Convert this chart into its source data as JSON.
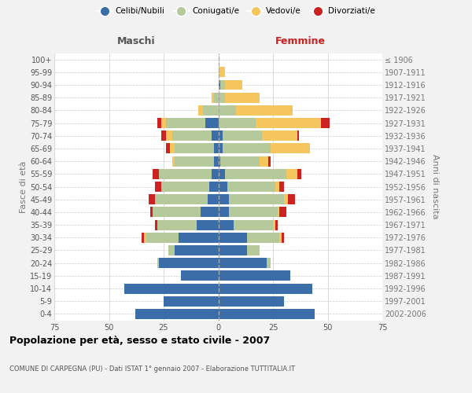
{
  "age_groups": [
    "0-4",
    "5-9",
    "10-14",
    "15-19",
    "20-24",
    "25-29",
    "30-34",
    "35-39",
    "40-44",
    "45-49",
    "50-54",
    "55-59",
    "60-64",
    "65-69",
    "70-74",
    "75-79",
    "80-84",
    "85-89",
    "90-94",
    "95-99",
    "100+"
  ],
  "birth_years": [
    "2002-2006",
    "1997-2001",
    "1992-1996",
    "1987-1991",
    "1982-1986",
    "1977-1981",
    "1972-1976",
    "1967-1971",
    "1962-1966",
    "1957-1961",
    "1952-1956",
    "1947-1951",
    "1942-1946",
    "1937-1941",
    "1932-1936",
    "1927-1931",
    "1922-1926",
    "1917-1921",
    "1912-1916",
    "1907-1911",
    "≤ 1906"
  ],
  "maschi": {
    "celibi": [
      38,
      25,
      43,
      17,
      27,
      20,
      18,
      10,
      8,
      5,
      4,
      3,
      2,
      2,
      3,
      6,
      0,
      0,
      0,
      0,
      0
    ],
    "coniugati": [
      0,
      0,
      0,
      0,
      1,
      3,
      15,
      18,
      22,
      24,
      22,
      24,
      18,
      18,
      18,
      18,
      7,
      2,
      0,
      0,
      0
    ],
    "vedovi": [
      0,
      0,
      0,
      0,
      0,
      0,
      1,
      0,
      0,
      0,
      0,
      0,
      1,
      2,
      3,
      2,
      2,
      1,
      0,
      0,
      0
    ],
    "divorziati": [
      0,
      0,
      0,
      0,
      0,
      0,
      1,
      1,
      1,
      3,
      3,
      3,
      0,
      2,
      2,
      2,
      0,
      0,
      0,
      0,
      0
    ]
  },
  "femmine": {
    "nubili": [
      44,
      30,
      43,
      33,
      22,
      13,
      13,
      7,
      5,
      5,
      4,
      3,
      1,
      2,
      2,
      0,
      0,
      0,
      1,
      0,
      0
    ],
    "coniugate": [
      0,
      0,
      0,
      0,
      2,
      6,
      15,
      18,
      22,
      25,
      22,
      28,
      18,
      22,
      18,
      17,
      8,
      3,
      2,
      0,
      0
    ],
    "vedove": [
      0,
      0,
      0,
      0,
      0,
      0,
      1,
      1,
      1,
      2,
      2,
      5,
      4,
      18,
      16,
      30,
      26,
      16,
      8,
      3,
      0
    ],
    "divorziate": [
      0,
      0,
      0,
      0,
      0,
      0,
      1,
      1,
      3,
      3,
      2,
      2,
      1,
      0,
      1,
      4,
      0,
      0,
      0,
      0,
      0
    ]
  },
  "colors": {
    "celibi": "#3B6DA8",
    "coniugati": "#B5C99A",
    "vedovi": "#F5C55E",
    "divorziati": "#CC2222"
  },
  "title": "Popolazione per età, sesso e stato civile - 2007",
  "subtitle": "COMUNE DI CARPEGNA (PU) - Dati ISTAT 1° gennaio 2007 - Elaborazione TUTTITALIA.IT",
  "xlabel_left": "Maschi",
  "xlabel_right": "Femmine",
  "ylabel_left": "Fasce di età",
  "ylabel_right": "Anni di nascita",
  "xlim": 75,
  "bg_color": "#f2f2f2",
  "plot_bg": "#ffffff",
  "legend_labels": [
    "Celibi/Nubili",
    "Coniugati/e",
    "Vedovi/e",
    "Divorziati/e"
  ]
}
